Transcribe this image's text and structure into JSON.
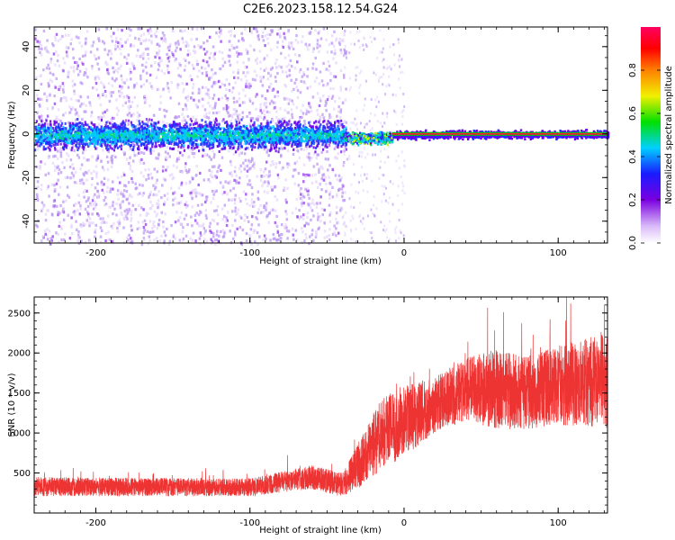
{
  "title": "C2E6.2023.158.12.54.G24",
  "chart_data": [
    {
      "type": "heatmap",
      "xlabel": "Height of straight line (km)",
      "ylabel": "Frequency (Hz)",
      "xlim": [
        -240,
        132
      ],
      "ylim": [
        -50,
        49
      ],
      "xticks": [
        -200,
        -100,
        0,
        100
      ],
      "yticks": [
        -40,
        -20,
        0,
        20,
        40
      ],
      "grid": false,
      "features": {
        "noise_region_x": [
          -240,
          -38
        ],
        "carrier_frequency_hz": 0,
        "strong_segment_x": [
          -38,
          -8
        ],
        "clean_carrier_x": [
          -8,
          132
        ]
      },
      "colorbar": {
        "label": "Normalized spectral amplitude",
        "range": [
          0,
          1
        ],
        "ticks": [
          "0.0",
          "0.2",
          "0.4",
          "0.6",
          "0.8"
        ],
        "tick_values": [
          0,
          0.2,
          0.4,
          0.6,
          0.8
        ],
        "colormap": [
          "#ffffff",
          "#7a00e0",
          "#1a1aff",
          "#00d0ff",
          "#00e000",
          "#f0f000",
          "#ff8000",
          "#ff0000",
          "#ff0060"
        ]
      }
    },
    {
      "type": "line",
      "xlabel": "Height of straight line (km)",
      "ylabel": "SNR (10 * v/v)",
      "xlim": [
        -240,
        132
      ],
      "ylim": [
        0,
        2700
      ],
      "xticks": [
        -200,
        -100,
        0,
        100
      ],
      "yticks": [
        500,
        1000,
        1500,
        2000,
        2500
      ],
      "grid": false,
      "series": [
        {
          "color": "#ee3333",
          "trend_x": [
            -240,
            -100,
            -60,
            -40,
            -25,
            -15,
            0,
            20,
            40,
            60,
            80,
            100,
            132
          ],
          "trend_y": [
            330,
            320,
            450,
            350,
            700,
            1000,
            1150,
            1350,
            1550,
            1550,
            1500,
            1600,
            1650
          ],
          "spread": [
            120,
            110,
            150,
            150,
            350,
            450,
            450,
            350,
            400,
            500,
            450,
            500,
            600
          ],
          "samples_per_km": 14
        }
      ]
    }
  ]
}
